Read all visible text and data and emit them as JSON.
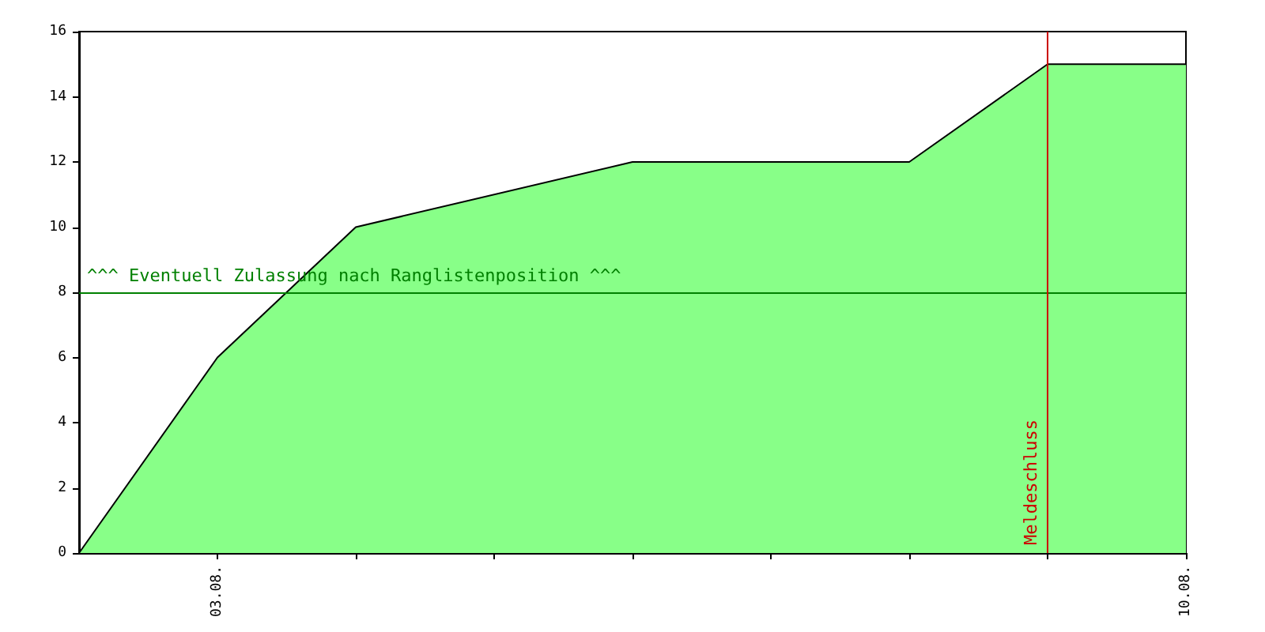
{
  "chart_data": {
    "type": "area",
    "x": [
      "--08-02",
      "--08-03",
      "--08-04",
      "--08-06",
      "--08-08",
      "--08-09",
      "--08-10"
    ],
    "series": [
      {
        "color": "#88ff88",
        "values": [
          0,
          6,
          10,
          12,
          12,
          15,
          15
        ]
      }
    ],
    "xlim": [
      "--08-02",
      "--08-10"
    ],
    "xticks": [
      {
        "value": "--08-03",
        "label": "03.08."
      },
      {
        "value": "--08-04",
        "label": null
      },
      {
        "value": "--08-05",
        "label": null
      },
      {
        "value": "--08-06",
        "label": null
      },
      {
        "value": "--08-07",
        "label": null
      },
      {
        "value": "--08-08",
        "label": null
      },
      {
        "value": "--08-09",
        "label": null
      },
      {
        "value": "--08-10",
        "label": "10.08."
      }
    ],
    "ylim": [
      0,
      16
    ],
    "yticks": [
      0,
      2,
      4,
      6,
      8,
      10,
      12,
      14,
      16
    ],
    "ref_lines": [
      {
        "axis": "y",
        "value": 8,
        "label": "^^^ Eventuell Zulassung nach Ranglistenposition ^^^",
        "color": "#008000"
      },
      {
        "axis": "x",
        "value": "--08-09",
        "label": "Meldeschluss",
        "color": "#cc0000"
      }
    ],
    "grid": false,
    "marker": "none"
  }
}
